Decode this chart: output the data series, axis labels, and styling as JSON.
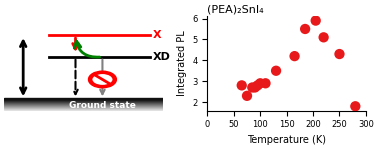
{
  "title": "(PEA)₂SnI₄",
  "xlabel": "Temperature (K)",
  "ylabel": "Integrated PL",
  "xlim": [
    0,
    300
  ],
  "xticks": [
    0,
    50,
    100,
    150,
    200,
    250,
    300
  ],
  "scatter_x": [
    65,
    75,
    85,
    90,
    95,
    100,
    110,
    130,
    165,
    185,
    205,
    220,
    250,
    280
  ],
  "scatter_y": [
    2.8,
    2.3,
    2.7,
    2.7,
    2.8,
    2.9,
    2.9,
    3.5,
    4.2,
    5.5,
    5.9,
    5.1,
    4.3,
    1.8
  ],
  "dot_color": "#e8191a",
  "dot_size": 55,
  "label_x": "X",
  "label_xd": "XD",
  "label_gs": "Ground state",
  "bg_color": "#ffffff"
}
